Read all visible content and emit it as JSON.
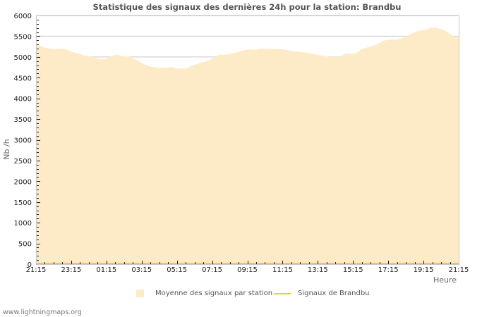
{
  "chart_data": {
    "type": "area",
    "title": "Statistique des signaux des dernières 24h pour la station: Brandbu",
    "xlabel": "Heure",
    "ylabel": "Nb /h",
    "ylim": [
      0,
      6000
    ],
    "yticks": [
      0,
      500,
      1000,
      1500,
      2000,
      2500,
      3000,
      3500,
      4000,
      4500,
      5000,
      5500,
      6000
    ],
    "xtick_labels": [
      "21:15",
      "23:15",
      "01:15",
      "03:15",
      "05:15",
      "07:15",
      "09:15",
      "11:15",
      "13:15",
      "15:15",
      "17:15",
      "19:15",
      "21:15"
    ],
    "grid": true,
    "legend_position": "bottom",
    "colors": {
      "average_fill": "#fdebc8",
      "station_line": "#f5c842",
      "grid": "#c8c8c8"
    },
    "series": [
      {
        "name": "Moyenne des signaux par station",
        "kind": "area",
        "x_hours": [
          0,
          0.2,
          0.5,
          1.0,
          1.4,
          1.7,
          2.0,
          2.4,
          2.8,
          3.2,
          3.6,
          4.0,
          4.3,
          4.6,
          5.0,
          5.4,
          5.8,
          6.2,
          6.6,
          7.0,
          7.4,
          7.7,
          8.0,
          8.5,
          8.8,
          9.2,
          9.6,
          10.0,
          10.4,
          10.9,
          11.3,
          11.7,
          12.1,
          12.4,
          12.7,
          13.2,
          14.0,
          14.4,
          14.8,
          15.4,
          16.0,
          16.6,
          17.2,
          17.6,
          18.1,
          18.5,
          18.9,
          19.3,
          19.7,
          20.1,
          20.5,
          20.9,
          21.3,
          21.7,
          22.1,
          22.4,
          22.8,
          23.1,
          23.5,
          23.9
        ],
        "values": [
          5320,
          5270,
          5220,
          5190,
          5200,
          5190,
          5130,
          5080,
          5030,
          5000,
          4950,
          4960,
          5030,
          5050,
          5020,
          5000,
          4900,
          4810,
          4760,
          4740,
          4740,
          4760,
          4720,
          4720,
          4780,
          4840,
          4880,
          4960,
          5050,
          5060,
          5100,
          5150,
          5190,
          5170,
          5200,
          5190,
          5190,
          5150,
          5130,
          5100,
          5050,
          5000,
          5000,
          5080,
          5080,
          5190,
          5240,
          5290,
          5390,
          5420,
          5420,
          5470,
          5560,
          5630,
          5650,
          5710,
          5700,
          5660,
          5560,
          5460
        ]
      },
      {
        "name": "Signaux de Brandbu",
        "kind": "line",
        "values": [
          0
        ]
      }
    ]
  },
  "header": {
    "title": "Statistique des signaux des dernières 24h pour la station: Brandbu"
  },
  "legend": {
    "items": [
      {
        "label": "Moyenne des signaux par station"
      },
      {
        "label": "Signaux de Brandbu"
      }
    ]
  },
  "footer": {
    "credit": "www.lightningmaps.org"
  }
}
